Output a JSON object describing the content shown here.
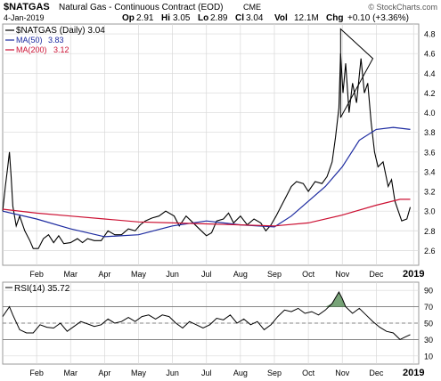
{
  "header": {
    "symbol": "$NATGAS",
    "description": "Natural Gas - Continuous Contract (EOD)",
    "exchange": "CME",
    "date": "4-Jan-2019",
    "open_label": "Op",
    "open": "2.91",
    "high_label": "Hi",
    "high": "3.05",
    "low_label": "Lo",
    "low": "2.89",
    "close_label": "Cl",
    "close": "3.04",
    "vol_label": "Vol",
    "vol": "12.1M",
    "chg_label": "Chg",
    "chg": "+0.10 (+3.36%)",
    "watermark": "© StockCharts.com"
  },
  "colors": {
    "price": "#000000",
    "ma50": "#1c2aa0",
    "ma200": "#cc1133",
    "grid": "#d8d8d8",
    "rsi_fill": "#3f7d3f",
    "triangle": "#000000"
  },
  "chart_data": [
    {
      "type": "line",
      "title": "$NATGAS (Daily) 3.04",
      "ylim": [
        2.45,
        4.9
      ],
      "y_ticks": [
        "2.6",
        "2.8",
        "3.0",
        "3.2",
        "3.4",
        "3.6",
        "3.8",
        "4.0",
        "4.2",
        "4.4",
        "4.6",
        "4.8"
      ],
      "x_tick_labels": [
        "Feb",
        "Mar",
        "Apr",
        "May",
        "Jun",
        "Jul",
        "Aug",
        "Sep",
        "Oct",
        "Nov",
        "Dec",
        "2019"
      ],
      "x_tick_pos": [
        0.5,
        1.5,
        2.5,
        3.5,
        4.5,
        5.5,
        6.5,
        7.5,
        8.5,
        9.5,
        10.5,
        11.6
      ],
      "x_range": [
        -0.5,
        11.75
      ],
      "series": [
        {
          "name": "$NATGAS (Daily)",
          "value": "3.04",
          "points": [
            [
              -0.5,
              3.0
            ],
            [
              -0.42,
              3.25
            ],
            [
              -0.35,
              3.45
            ],
            [
              -0.3,
              3.6
            ],
            [
              -0.25,
              3.35
            ],
            [
              -0.2,
              3.05
            ],
            [
              -0.1,
              2.85
            ],
            [
              0.0,
              2.95
            ],
            [
              0.15,
              2.8
            ],
            [
              0.3,
              2.7
            ],
            [
              0.4,
              2.62
            ],
            [
              0.55,
              2.62
            ],
            [
              0.7,
              2.72
            ],
            [
              0.85,
              2.76
            ],
            [
              1.0,
              2.68
            ],
            [
              1.15,
              2.75
            ],
            [
              1.3,
              2.67
            ],
            [
              1.5,
              2.68
            ],
            [
              1.7,
              2.72
            ],
            [
              1.85,
              2.68
            ],
            [
              2.0,
              2.72
            ],
            [
              2.2,
              2.7
            ],
            [
              2.4,
              2.7
            ],
            [
              2.6,
              2.8
            ],
            [
              2.8,
              2.76
            ],
            [
              3.0,
              2.76
            ],
            [
              3.2,
              2.82
            ],
            [
              3.4,
              2.8
            ],
            [
              3.55,
              2.86
            ],
            [
              3.7,
              2.9
            ],
            [
              3.9,
              2.93
            ],
            [
              4.1,
              2.95
            ],
            [
              4.3,
              3.0
            ],
            [
              4.55,
              2.95
            ],
            [
              4.7,
              2.85
            ],
            [
              4.9,
              2.95
            ],
            [
              5.05,
              2.9
            ],
            [
              5.2,
              2.85
            ],
            [
              5.35,
              2.8
            ],
            [
              5.5,
              2.75
            ],
            [
              5.65,
              2.78
            ],
            [
              5.8,
              2.9
            ],
            [
              6.0,
              2.92
            ],
            [
              6.15,
              2.98
            ],
            [
              6.3,
              2.88
            ],
            [
              6.5,
              2.95
            ],
            [
              6.7,
              2.86
            ],
            [
              6.9,
              2.92
            ],
            [
              7.1,
              2.88
            ],
            [
              7.25,
              2.8
            ],
            [
              7.4,
              2.86
            ],
            [
              7.55,
              2.95
            ],
            [
              7.7,
              3.05
            ],
            [
              7.85,
              3.15
            ],
            [
              8.0,
              3.25
            ],
            [
              8.15,
              3.3
            ],
            [
              8.35,
              3.28
            ],
            [
              8.5,
              3.2
            ],
            [
              8.7,
              3.3
            ],
            [
              8.9,
              3.28
            ],
            [
              9.05,
              3.35
            ],
            [
              9.2,
              3.5
            ],
            [
              9.3,
              3.75
            ],
            [
              9.4,
              4.05
            ],
            [
              9.45,
              4.6
            ],
            [
              9.52,
              4.2
            ],
            [
              9.6,
              4.5
            ],
            [
              9.7,
              4.0
            ],
            [
              9.8,
              4.3
            ],
            [
              9.92,
              4.1
            ],
            [
              10.05,
              4.55
            ],
            [
              10.15,
              4.2
            ],
            [
              10.25,
              4.3
            ],
            [
              10.35,
              3.9
            ],
            [
              10.45,
              3.6
            ],
            [
              10.55,
              3.45
            ],
            [
              10.7,
              3.5
            ],
            [
              10.85,
              3.25
            ],
            [
              10.95,
              3.32
            ],
            [
              11.05,
              3.1
            ],
            [
              11.15,
              3.0
            ],
            [
              11.25,
              2.9
            ],
            [
              11.4,
              2.92
            ],
            [
              11.5,
              3.04
            ]
          ]
        },
        {
          "name": "MA(50)",
          "value": "3.83",
          "points": [
            [
              -0.5,
              3.0
            ],
            [
              0.5,
              2.92
            ],
            [
              1.5,
              2.82
            ],
            [
              2.5,
              2.74
            ],
            [
              3.5,
              2.76
            ],
            [
              4.5,
              2.85
            ],
            [
              5.5,
              2.9
            ],
            [
              6.5,
              2.86
            ],
            [
              7.5,
              2.84
            ],
            [
              8.0,
              2.95
            ],
            [
              8.5,
              3.1
            ],
            [
              9.0,
              3.25
            ],
            [
              9.5,
              3.45
            ],
            [
              10.0,
              3.72
            ],
            [
              10.5,
              3.83
            ],
            [
              11.0,
              3.85
            ],
            [
              11.5,
              3.83
            ]
          ]
        },
        {
          "name": "MA(200)",
          "value": "3.12",
          "points": [
            [
              -0.5,
              3.02
            ],
            [
              0.5,
              2.98
            ],
            [
              1.5,
              2.95
            ],
            [
              2.5,
              2.92
            ],
            [
              3.5,
              2.89
            ],
            [
              4.5,
              2.88
            ],
            [
              5.5,
              2.87
            ],
            [
              6.5,
              2.86
            ],
            [
              7.5,
              2.85
            ],
            [
              8.5,
              2.88
            ],
            [
              9.5,
              2.96
            ],
            [
              10.5,
              3.06
            ],
            [
              11.2,
              3.12
            ],
            [
              11.5,
              3.12
            ]
          ]
        }
      ],
      "annotation": {
        "type": "symmetrical triangle",
        "points": [
          [
            9.45,
            4.85
          ],
          [
            10.4,
            4.55
          ],
          [
            9.45,
            3.95
          ]
        ]
      }
    },
    {
      "type": "line",
      "title": "RSI(14) 35.72",
      "ylim": [
        0,
        100
      ],
      "y_ticks": [
        "10",
        "30",
        "50",
        "70",
        "90"
      ],
      "ref_lines": [
        30,
        50,
        70
      ],
      "series": [
        {
          "name": "RSI(14)",
          "value": "35.72",
          "points": [
            [
              -0.5,
              58
            ],
            [
              -0.3,
              70
            ],
            [
              -0.2,
              60
            ],
            [
              0.0,
              42
            ],
            [
              0.2,
              38
            ],
            [
              0.4,
              38
            ],
            [
              0.6,
              48
            ],
            [
              0.8,
              45
            ],
            [
              1.0,
              44
            ],
            [
              1.2,
              50
            ],
            [
              1.4,
              40
            ],
            [
              1.6,
              46
            ],
            [
              1.8,
              52
            ],
            [
              2.0,
              49
            ],
            [
              2.2,
              46
            ],
            [
              2.4,
              48
            ],
            [
              2.6,
              55
            ],
            [
              2.8,
              50
            ],
            [
              3.0,
              52
            ],
            [
              3.2,
              57
            ],
            [
              3.4,
              52
            ],
            [
              3.6,
              58
            ],
            [
              3.8,
              60
            ],
            [
              4.0,
              55
            ],
            [
              4.2,
              60
            ],
            [
              4.4,
              58
            ],
            [
              4.6,
              50
            ],
            [
              4.8,
              44
            ],
            [
              5.0,
              52
            ],
            [
              5.2,
              48
            ],
            [
              5.4,
              44
            ],
            [
              5.6,
              48
            ],
            [
              5.8,
              56
            ],
            [
              6.0,
              54
            ],
            [
              6.2,
              60
            ],
            [
              6.4,
              50
            ],
            [
              6.6,
              55
            ],
            [
              6.8,
              48
            ],
            [
              7.0,
              52
            ],
            [
              7.2,
              42
            ],
            [
              7.4,
              48
            ],
            [
              7.6,
              58
            ],
            [
              7.8,
              66
            ],
            [
              8.0,
              64
            ],
            [
              8.2,
              68
            ],
            [
              8.4,
              62
            ],
            [
              8.6,
              64
            ],
            [
              8.8,
              60
            ],
            [
              9.0,
              66
            ],
            [
              9.2,
              74
            ],
            [
              9.4,
              88
            ],
            [
              9.5,
              80
            ],
            [
              9.6,
              70
            ],
            [
              9.8,
              62
            ],
            [
              10.0,
              68
            ],
            [
              10.2,
              60
            ],
            [
              10.4,
              52
            ],
            [
              10.6,
              45
            ],
            [
              10.8,
              40
            ],
            [
              11.0,
              38
            ],
            [
              11.2,
              30
            ],
            [
              11.35,
              33
            ],
            [
              11.5,
              36
            ]
          ]
        }
      ]
    }
  ]
}
